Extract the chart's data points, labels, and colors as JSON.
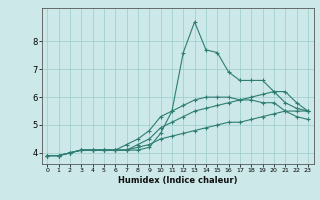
{
  "xlabel": "Humidex (Indice chaleur)",
  "background_color": "#cce8e8",
  "grid_color": "#99cccc",
  "line_color": "#2e7d72",
  "xlim": [
    -0.5,
    23.5
  ],
  "ylim": [
    3.6,
    9.2
  ],
  "yticks": [
    4,
    5,
    6,
    7,
    8
  ],
  "xticks": [
    0,
    1,
    2,
    3,
    4,
    5,
    6,
    7,
    8,
    9,
    10,
    11,
    12,
    13,
    14,
    15,
    16,
    17,
    18,
    19,
    20,
    21,
    22,
    23
  ],
  "series": [
    {
      "x": [
        0,
        1,
        2,
        3,
        4,
        5,
        6,
        7,
        8,
        9,
        10,
        11,
        12,
        13,
        14,
        15,
        16,
        17,
        18,
        19,
        20,
        21,
        22,
        23
      ],
      "y": [
        3.9,
        3.9,
        4.0,
        4.1,
        4.1,
        4.1,
        4.1,
        4.1,
        4.1,
        4.2,
        4.7,
        5.5,
        7.6,
        8.7,
        7.7,
        7.6,
        6.9,
        6.6,
        6.6,
        6.6,
        6.2,
        5.8,
        5.6,
        5.5
      ]
    },
    {
      "x": [
        0,
        1,
        2,
        3,
        4,
        5,
        6,
        7,
        8,
        9,
        10,
        11,
        12,
        13,
        14,
        15,
        16,
        17,
        18,
        19,
        20,
        21,
        22,
        23
      ],
      "y": [
        3.9,
        3.9,
        4.0,
        4.1,
        4.1,
        4.1,
        4.1,
        4.1,
        4.3,
        4.5,
        4.9,
        5.1,
        5.3,
        5.5,
        5.6,
        5.7,
        5.8,
        5.9,
        6.0,
        6.1,
        6.2,
        6.2,
        5.8,
        5.5
      ]
    },
    {
      "x": [
        0,
        1,
        2,
        3,
        4,
        5,
        6,
        7,
        8,
        9,
        10,
        11,
        12,
        13,
        14,
        15,
        16,
        17,
        18,
        19,
        20,
        21,
        22,
        23
      ],
      "y": [
        3.9,
        3.9,
        4.0,
        4.1,
        4.1,
        4.1,
        4.1,
        4.1,
        4.2,
        4.3,
        4.5,
        4.6,
        4.7,
        4.8,
        4.9,
        5.0,
        5.1,
        5.1,
        5.2,
        5.3,
        5.4,
        5.5,
        5.5,
        5.5
      ]
    },
    {
      "x": [
        0,
        1,
        2,
        3,
        4,
        5,
        6,
        7,
        8,
        9,
        10,
        11,
        12,
        13,
        14,
        15,
        16,
        17,
        18,
        19,
        20,
        21,
        22,
        23
      ],
      "y": [
        3.9,
        3.9,
        4.0,
        4.1,
        4.1,
        4.1,
        4.1,
        4.3,
        4.5,
        4.8,
        5.3,
        5.5,
        5.7,
        5.9,
        6.0,
        6.0,
        6.0,
        5.9,
        5.9,
        5.8,
        5.8,
        5.5,
        5.3,
        5.2
      ]
    }
  ]
}
